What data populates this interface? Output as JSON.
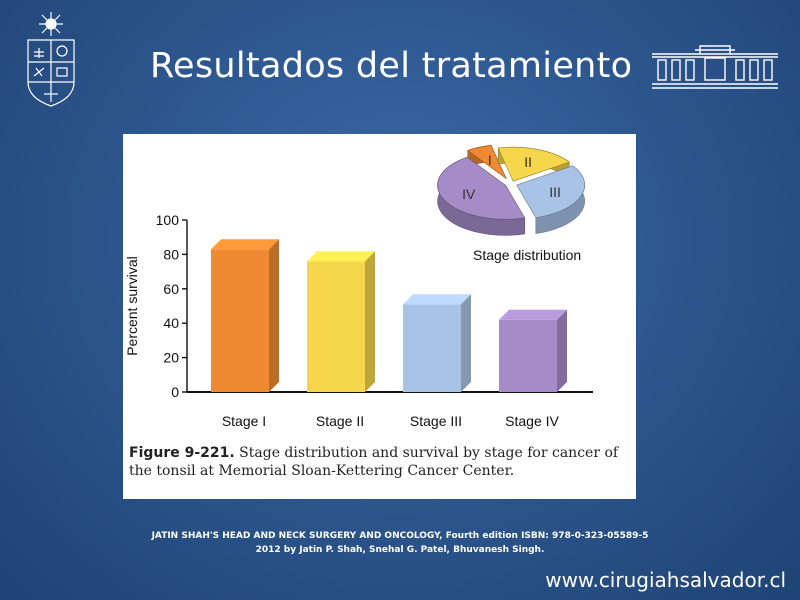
{
  "slide": {
    "title": "Resultados del tratamiento",
    "website": "www.cirugiahsalvador.cl",
    "citation_line1": "JATIN SHAH'S HEAD AND NECK SURGERY AND ONCOLOGY, Fourth edition ISBN: 978-0-323-05589-5",
    "citation_line2": "2012 by Jatin P. Shah, Snehal G. Patel, Bhuvanesh Singh."
  },
  "figure": {
    "label": "Figure 9-221.",
    "caption": "Stage distribution and survival by stage for cancer of the tonsil at Memorial Sloan-Kettering Cancer Center."
  },
  "chart_data": [
    {
      "type": "bar",
      "categories": [
        "Stage I",
        "Stage II",
        "Stage III",
        "Stage IV"
      ],
      "values": [
        83,
        76,
        51,
        42
      ],
      "ylabel": "Percent survival",
      "ylim": [
        0,
        100
      ],
      "yticks": [
        0,
        20,
        40,
        60,
        80,
        100
      ],
      "colors": [
        "#f08a32",
        "#f6d64a",
        "#a9c3e6",
        "#a58bc8"
      ]
    },
    {
      "type": "pie",
      "title": "Stage distribution",
      "labels": [
        "I",
        "II",
        "III",
        "IV"
      ],
      "values": [
        6,
        19,
        30,
        45
      ],
      "colors": [
        "#f08a32",
        "#f6d64a",
        "#a9c3e6",
        "#a58bc8"
      ]
    }
  ]
}
